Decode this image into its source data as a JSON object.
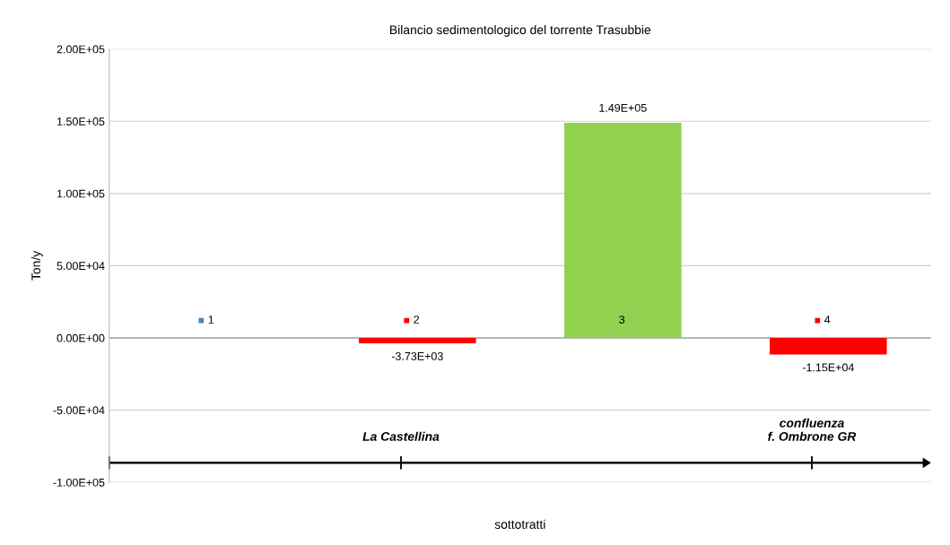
{
  "chart_data": {
    "type": "bar",
    "title": "Bilancio sedimentologico del torrente Trasubbie",
    "xlabel": "sottotratti",
    "ylabel": "Ton/y",
    "categories": [
      "1",
      "2",
      "3",
      "4"
    ],
    "values": [
      0,
      -3730,
      149000,
      -11500
    ],
    "colors": [
      "#4f81bd",
      "#ff0000",
      "#92d050",
      "#ff0000"
    ],
    "value_labels": [
      null,
      "-3.73E+03",
      "1.49E+05",
      "-1.15E+04"
    ],
    "ylim": [
      -100000,
      200000
    ],
    "yticks": [
      {
        "value": -100000,
        "label": "-1.00E+05"
      },
      {
        "value": -50000,
        "label": "-5.00E+04"
      },
      {
        "value": 0,
        "label": "0.00E+00"
      },
      {
        "value": 50000,
        "label": "5.00E+04"
      },
      {
        "value": 100000,
        "label": "1.00E+05"
      },
      {
        "value": 150000,
        "label": "1.50E+05"
      },
      {
        "value": 200000,
        "label": "2.00E+05"
      }
    ],
    "grid": "y",
    "annotations": [
      "La Castellina",
      "confluenza\nf. Ombrone GR"
    ]
  }
}
